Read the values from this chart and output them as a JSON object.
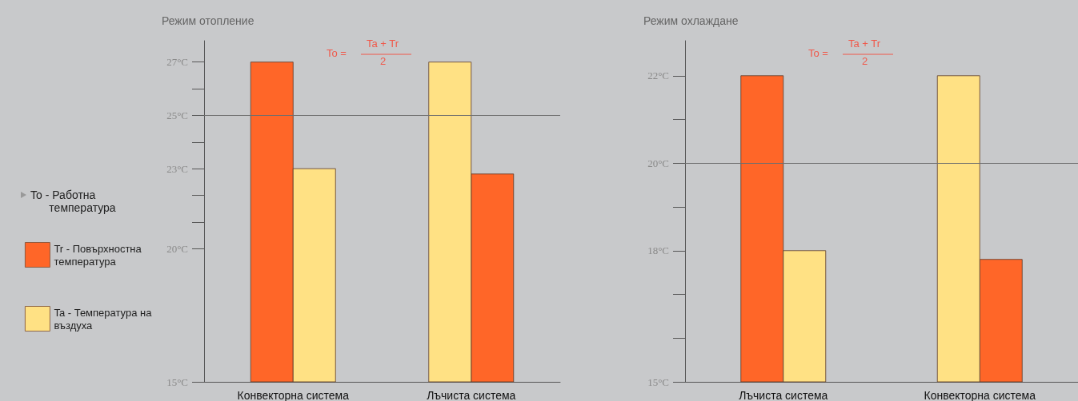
{
  "chart_data": [
    {
      "type": "bar",
      "title": "Режим отопление",
      "categories": [
        "Конвекторна система",
        "Лъчиста система"
      ],
      "series": [
        {
          "name": "Tr - Повърхностна температура",
          "color": "#ff6628",
          "values": [
            27,
            22.8
          ]
        },
        {
          "name": "Ta - Температура на въздуха",
          "color": "#ffe184",
          "values": [
            23,
            27
          ]
        }
      ],
      "ylim": [
        15,
        27.8
      ],
      "yticks": [
        {
          "value": 15,
          "label": "15°C"
        },
        {
          "value": 20,
          "label": "20°C"
        },
        {
          "value": 21,
          "label": null
        },
        {
          "value": 22,
          "label": null
        },
        {
          "value": 23,
          "label": "23°C"
        },
        {
          "value": 24,
          "label": null
        },
        {
          "value": 25,
          "label": "25°C"
        },
        {
          "value": 26,
          "label": null
        },
        {
          "value": 27,
          "label": "27°C"
        }
      ],
      "ref_lines": [
        {
          "axis": "y",
          "value": 25,
          "color": "#6e6e6e"
        }
      ],
      "annotations": [
        "To =",
        "Ta + Tr",
        "2"
      ],
      "legend": "left",
      "legend_title": "To - Работна температура",
      "grid": false
    },
    {
      "type": "bar",
      "title": "Режим охлаждане",
      "categories": [
        "Лъчиста система",
        "Конвекторна система"
      ],
      "series": [
        {
          "color": "#ff6628",
          "values": [
            22,
            17.8
          ]
        },
        {
          "color": "#ffe184",
          "values": [
            18,
            22
          ]
        }
      ],
      "ylim": [
        15,
        22.8
      ],
      "yticks": [
        {
          "value": 15,
          "label": "15°C"
        },
        {
          "value": 16,
          "label": null
        },
        {
          "value": 17,
          "label": null
        },
        {
          "value": 18,
          "label": "18°C"
        },
        {
          "value": 19,
          "label": null
        },
        {
          "value": 20,
          "label": "20°C"
        },
        {
          "value": 21,
          "label": null
        },
        {
          "value": 22,
          "label": "22°C"
        }
      ],
      "ref_lines": [
        {
          "axis": "y",
          "value": 20,
          "color": "#6e6e6e"
        }
      ],
      "annotations": [
        "To =",
        "Ta + Tr",
        "2"
      ],
      "legend": false,
      "grid": false
    }
  ]
}
